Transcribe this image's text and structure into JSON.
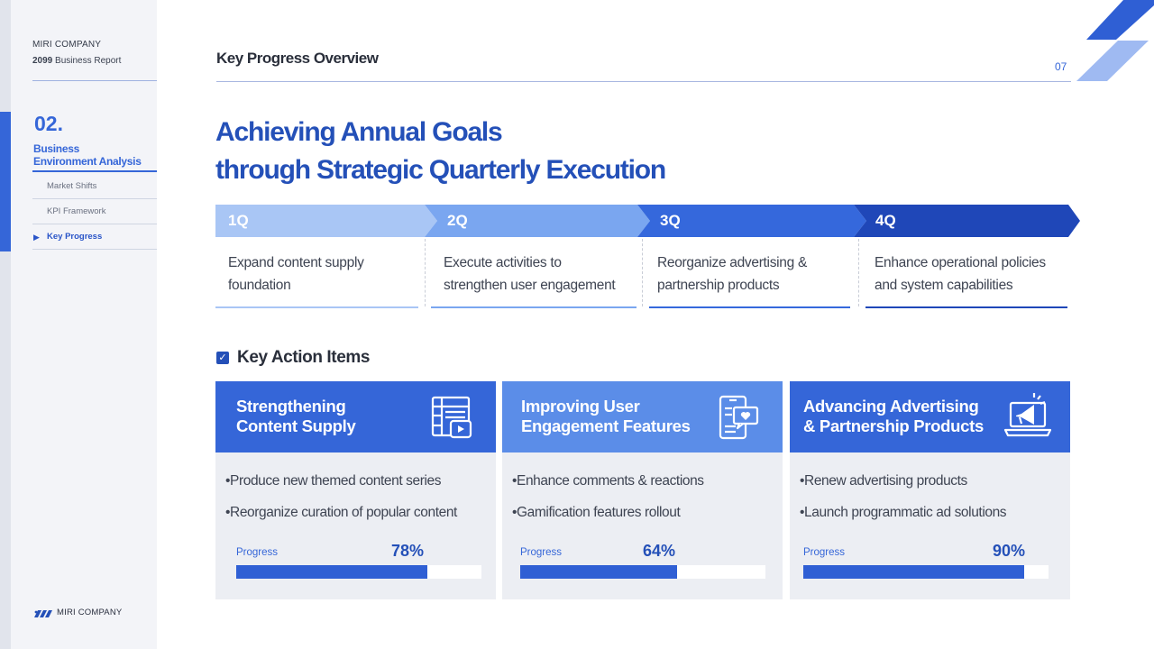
{
  "sidebar": {
    "company": "MIRI COMPANY",
    "report_year": "2099",
    "report_label": "Business Report",
    "section_number": "02.",
    "section_title_line1": "Business",
    "section_title_line2": "Environment Analysis",
    "items": [
      {
        "label": "Market Shifts"
      },
      {
        "label": "KPI Framework"
      },
      {
        "label": "Key Progress"
      }
    ],
    "brand": "MIRI COMPANY"
  },
  "header": {
    "title": "Key Progress Overview",
    "page_number": "07"
  },
  "headline": {
    "line1": "Achieving Annual Goals",
    "line2": "through Strategic Quarterly Execution"
  },
  "quarters": [
    {
      "label": "1Q",
      "line1": "Expand content supply",
      "line2": "foundation",
      "color": "#a9c6f5"
    },
    {
      "label": "2Q",
      "line1": "Execute activities to",
      "line2": "strengthen user engagement",
      "color": "#7aa6f0"
    },
    {
      "label": "3Q",
      "line1": "Reorganize advertising &",
      "line2": "partnership products",
      "color": "#3568dc"
    },
    {
      "label": "4Q",
      "line1": "Enhance operational policies",
      "line2": "and system capabilities",
      "color": "#1f47b8"
    }
  ],
  "key_actions": {
    "title": "Key Action Items",
    "cards": [
      {
        "title_line1": "Strengthening",
        "title_line2": "Content Supply",
        "icon": "content-grid-icon",
        "bullets": [
          "•Produce new themed content series",
          "•Reorganize curation of popular content"
        ],
        "progress_label": "Progress",
        "progress_text": "78%",
        "progress": 78,
        "color": "#3566d8"
      },
      {
        "title_line1": "Improving User",
        "title_line2": "Engagement Features",
        "icon": "phone-heart-icon",
        "bullets": [
          "•Enhance comments & reactions",
          "•Gamification features rollout"
        ],
        "progress_label": "Progress",
        "progress_text": "64%",
        "progress": 64,
        "color": "#5b8de8"
      },
      {
        "title_line1": "Advancing Advertising",
        "title_line2": "& Partnership Products",
        "icon": "megaphone-laptop-icon",
        "bullets": [
          "•Renew advertising products",
          "•Launch programmatic ad solutions"
        ],
        "progress_label": "Progress",
        "progress_text": "90%",
        "progress": 90,
        "color": "#3566d8"
      }
    ]
  }
}
